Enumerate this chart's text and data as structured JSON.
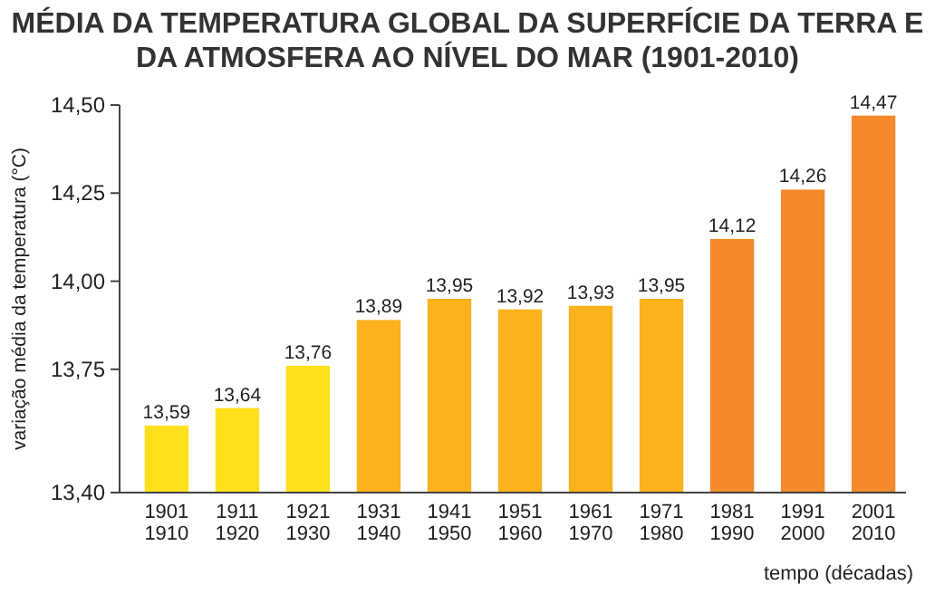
{
  "chart_data": {
    "type": "bar",
    "title": "MÉDIA DA TEMPERATURA GLOBAL DA SUPERFÍCIE DA TERRA E DA ATMOSFERA AO NÍVEL DO MAR (1901-2010)",
    "xlabel": "tempo (décadas)",
    "ylabel": "variação média da temperatura (°C)",
    "categories": [
      "1901 1910",
      "1911 1920",
      "1921 1930",
      "1931 1940",
      "1941 1950",
      "1951 1960",
      "1961 1970",
      "1971 1980",
      "1981 1990",
      "1991 2000",
      "2001 2010"
    ],
    "values": [
      13.59,
      13.64,
      13.76,
      13.89,
      13.95,
      13.92,
      13.93,
      13.95,
      14.12,
      14.26,
      14.47
    ],
    "colors": [
      "#ffe01b",
      "#ffe01b",
      "#ffe01b",
      "#fbb21d",
      "#fbb21d",
      "#fbb21d",
      "#fbb21d",
      "#fbb21d",
      "#f4892b",
      "#f4892b",
      "#f4892b"
    ],
    "value_labels": [
      "13,59",
      "13,64",
      "13,76",
      "13,89",
      "13,95",
      "13,92",
      "13,93",
      "13,95",
      "14,12",
      "14,26",
      "14,47"
    ],
    "ylim": [
      13.4,
      14.5
    ],
    "yticks": [
      {
        "value": 13.4,
        "label": "13,40"
      },
      {
        "value": 13.75,
        "label": "13,75"
      },
      {
        "value": 14.0,
        "label": "14,00"
      },
      {
        "value": 14.25,
        "label": "14,25"
      },
      {
        "value": 14.5,
        "label": "14,50"
      }
    ]
  }
}
